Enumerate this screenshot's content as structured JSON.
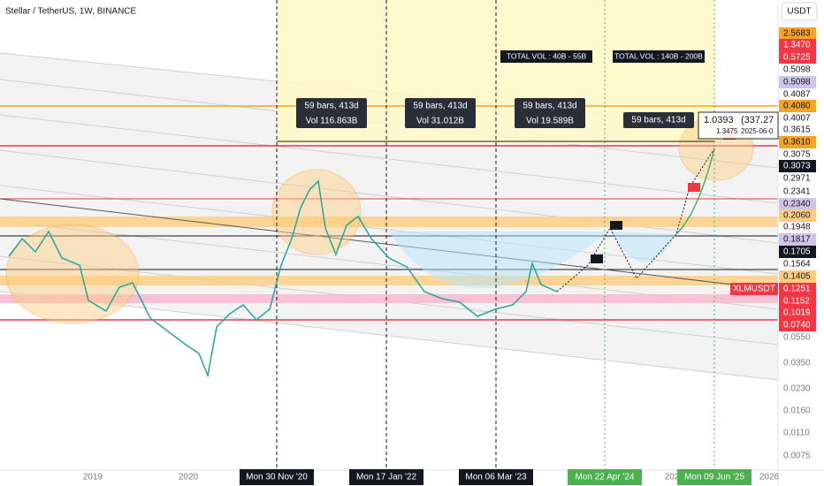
{
  "header": {
    "title": "Stellar / TetherUS, 1W, BINANCE",
    "currency_button": "USDT"
  },
  "price_axis": [
    "2.5683",
    "1.3470",
    "0.5725",
    "0.5098",
    "0.5098",
    "0.4087",
    "0.4080",
    "0.4007",
    "0.3615",
    "0.3610",
    "0.3075",
    "0.3073",
    "0.2971",
    "0.2341",
    "0.2340",
    "0.2060",
    "0.1948",
    "0.1817",
    "0.1705",
    "0.1564",
    "0.1405",
    "0.1251",
    "0.1152",
    "0.1019",
    "0.0740",
    "0.0550",
    "0.0350",
    "0.0230",
    "0.0160",
    "0.0110",
    "0.0075"
  ],
  "symbol_label": "XLMUSDT",
  "time_axis": [
    "2019",
    "2020",
    "Mon 30 Nov '20",
    "Mon 17 Jan '22",
    "Mon 06 Mar '23",
    "Mon 22 Apr '24",
    "202",
    "Mon 09 Jun '25",
    "2026"
  ],
  "annotations": {
    "ranges": [
      {
        "bars": "59 bars, 413d",
        "vol": "Vol 116.863B"
      },
      {
        "bars": "59 bars, 413d",
        "vol": "Vol 31.012B"
      },
      {
        "bars": "59 bars, 413d",
        "vol": "Vol 19.589B"
      },
      {
        "bars": "59 bars, 413d"
      }
    ],
    "totals": [
      "TOTAL VOL : 40B - 55B",
      "TOTAL VOL : 140B - 200B"
    ],
    "tooltip": {
      "value": "1.0393",
      "change": "(337.27",
      "price": "1.3475",
      "date": "2025-06-0"
    }
  }
}
